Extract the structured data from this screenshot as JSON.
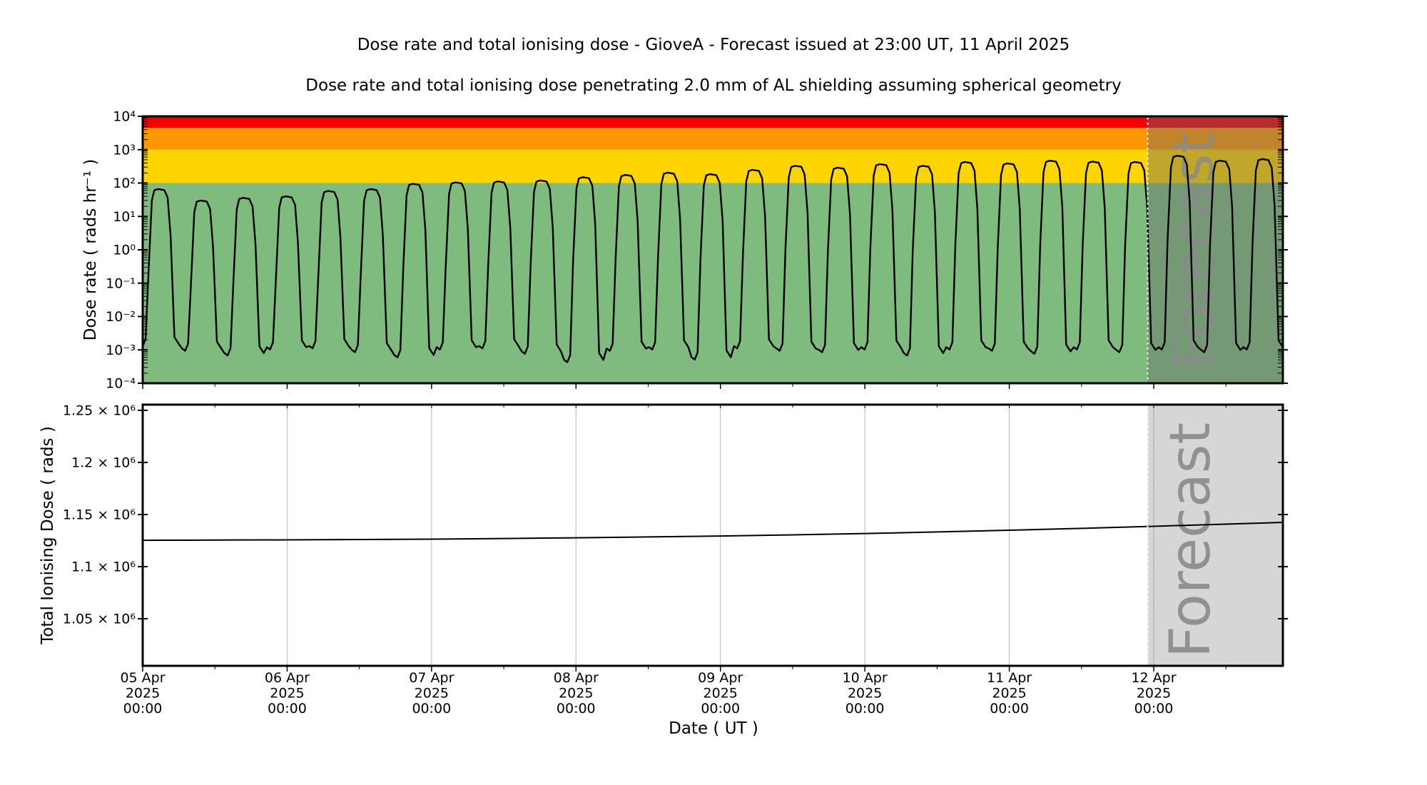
{
  "figure": {
    "title": "Dose rate and total ionising dose - GioveA - Forecast issued at 23:00 UT, 11 April 2025",
    "subtitle": "Dose rate and total ionising dose penetrating 2.0 mm of AL shielding assuming spherical geometry",
    "xlabel": "Date ( UT )"
  },
  "forecast": {
    "label": "Forecast",
    "start_day": 6.958,
    "issued_at": "23:00 UT, 11 April 2025"
  },
  "colors": {
    "band_red": "#f40000",
    "band_orange": "#ff9800",
    "band_yellow": "#ffd400",
    "band_green": "#7fba7f",
    "line": "#000000",
    "grid": "#b8b8b8",
    "forecast_overlay_top": "rgba(105,105,105,0.42)",
    "forecast_overlay_bottom": "rgba(120,120,120,0.30)",
    "forecast_text": "#8a8a8a",
    "dotted_line": "#ffffff",
    "frame": "#000000"
  },
  "x_axis": {
    "ticks": [
      {
        "day": 0,
        "lines": [
          "05 Apr",
          "2025",
          "00:00"
        ]
      },
      {
        "day": 1,
        "lines": [
          "06 Apr",
          "2025",
          "00:00"
        ]
      },
      {
        "day": 2,
        "lines": [
          "07 Apr",
          "2025",
          "00:00"
        ]
      },
      {
        "day": 3,
        "lines": [
          "08 Apr",
          "2025",
          "00:00"
        ]
      },
      {
        "day": 4,
        "lines": [
          "09 Apr",
          "2025",
          "00:00"
        ]
      },
      {
        "day": 5,
        "lines": [
          "10 Apr",
          "2025",
          "00:00"
        ]
      },
      {
        "day": 6,
        "lines": [
          "11 Apr",
          "2025",
          "00:00"
        ]
      },
      {
        "day": 7,
        "lines": [
          "12 Apr",
          "2025",
          "00:00"
        ]
      }
    ],
    "minor_tick_step_days": 0.5,
    "xlim_days": [
      0,
      7.894
    ]
  },
  "chart_data": [
    {
      "type": "line",
      "name": "dose_rate",
      "ylabel": "Dose rate ( rads hr⁻¹ )",
      "yscale": "log",
      "ylim": [
        0.0001,
        10000
      ],
      "yticks": [
        {
          "label": "10⁴",
          "value": 10000
        },
        {
          "label": "10³",
          "value": 1000
        },
        {
          "label": "10²",
          "value": 100
        },
        {
          "label": "10¹",
          "value": 10
        },
        {
          "label": "10⁰",
          "value": 1
        },
        {
          "label": "10⁻¹",
          "value": 0.1
        },
        {
          "label": "10⁻²",
          "value": 0.01
        },
        {
          "label": "10⁻³",
          "value": 0.001
        },
        {
          "label": "10⁻⁴",
          "value": 0.0001
        }
      ],
      "threshold_bands": [
        {
          "name": "green",
          "from": 0.0001,
          "to": 100,
          "color_key": "band_green"
        },
        {
          "name": "yellow",
          "from": 100,
          "to": 1000,
          "color_key": "band_yellow"
        },
        {
          "name": "orange",
          "from": 1000,
          "to": 4500,
          "color_key": "band_orange"
        },
        {
          "name": "red",
          "from": 4500,
          "to": 10000,
          "color_key": "band_red"
        }
      ],
      "orbit_period_days": 0.294,
      "cycles": [
        {
          "t": 0.125,
          "peak": 66,
          "trough": 0.0015
        },
        {
          "t": 0.419,
          "peak": 30,
          "trough": 0.0011
        },
        {
          "t": 0.713,
          "peak": 36,
          "trough": 0.0008
        },
        {
          "t": 1.007,
          "peak": 40,
          "trough": 0.0012
        },
        {
          "t": 1.301,
          "peak": 58,
          "trough": 0.0013
        },
        {
          "t": 1.595,
          "peak": 66,
          "trough": 0.001
        },
        {
          "t": 1.889,
          "peak": 95,
          "trough": 0.0007
        },
        {
          "t": 2.183,
          "peak": 105,
          "trough": 0.0012
        },
        {
          "t": 2.477,
          "peak": 112,
          "trough": 0.0013
        },
        {
          "t": 2.771,
          "peak": 120,
          "trough": 0.0009
        },
        {
          "t": 3.065,
          "peak": 150,
          "trough": 0.0005
        },
        {
          "t": 3.359,
          "peak": 175,
          "trough": 0.0011
        },
        {
          "t": 3.653,
          "peak": 205,
          "trough": 0.0012
        },
        {
          "t": 3.947,
          "peak": 185,
          "trough": 0.0006
        },
        {
          "t": 4.241,
          "peak": 250,
          "trough": 0.0013
        },
        {
          "t": 4.535,
          "peak": 330,
          "trough": 0.0011
        },
        {
          "t": 4.829,
          "peak": 290,
          "trough": 0.001
        },
        {
          "t": 5.123,
          "peak": 370,
          "trough": 0.0012
        },
        {
          "t": 5.417,
          "peak": 330,
          "trough": 0.0008
        },
        {
          "t": 5.711,
          "peak": 430,
          "trough": 0.0012
        },
        {
          "t": 6.005,
          "peak": 390,
          "trough": 0.0011
        },
        {
          "t": 6.299,
          "peak": 470,
          "trough": 0.0009
        },
        {
          "t": 6.593,
          "peak": 440,
          "trough": 0.0012
        },
        {
          "t": 6.887,
          "peak": 430,
          "trough": 0.001
        },
        {
          "t": 7.181,
          "peak": 660,
          "trough": 0.0012
        },
        {
          "t": 7.475,
          "peak": 470,
          "trough": 0.001
        },
        {
          "t": 7.769,
          "peak": 525,
          "trough": 0.0012
        }
      ]
    },
    {
      "type": "line",
      "name": "total_ionising_dose",
      "ylabel": "Total Ionising Dose ( rads )",
      "yscale": "linear",
      "ylim": [
        1005000,
        1255500
      ],
      "yticks": [
        {
          "label": "1.25 × 10⁶",
          "value": 1250000
        },
        {
          "label": "1.2 × 10⁶",
          "value": 1200000
        },
        {
          "label": "1.15 × 10⁶",
          "value": 1150000
        },
        {
          "label": "1.1 × 10⁶",
          "value": 1100000
        },
        {
          "label": "1.05 × 10⁶",
          "value": 1050000
        }
      ],
      "grid": "vertical-days",
      "series": [
        [
          0,
          1125300
        ],
        [
          0.5,
          1125500
        ],
        [
          1,
          1125700
        ],
        [
          1.5,
          1126000
        ],
        [
          2,
          1126400
        ],
        [
          2.5,
          1127000
        ],
        [
          3,
          1127700
        ],
        [
          3.5,
          1128500
        ],
        [
          4,
          1129400
        ],
        [
          4.5,
          1130500
        ],
        [
          5,
          1131800
        ],
        [
          5.5,
          1133300
        ],
        [
          6,
          1134900
        ],
        [
          6.5,
          1136700
        ],
        [
          7,
          1138700
        ],
        [
          7.45,
          1140600
        ],
        [
          7.894,
          1142500
        ]
      ]
    }
  ]
}
